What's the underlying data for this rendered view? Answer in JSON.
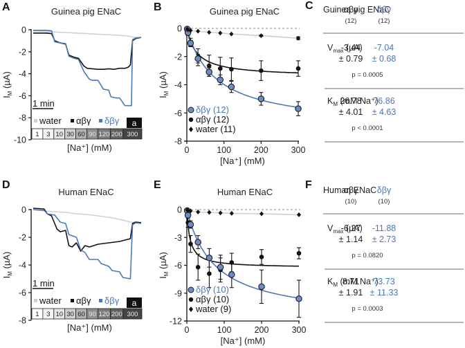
{
  "colors": {
    "water": "#d0d0d0",
    "abg": "#111111",
    "dbg": "#4a78b5",
    "dbg_fill": "#6b8cc4"
  },
  "chart_data": [
    {
      "panel": "A",
      "type": "line",
      "title": "Guinea pig ENaC",
      "xlabel": "[Na⁺] (mM)",
      "ylabel": "I_M (µA)",
      "ylim": [
        -10,
        0
      ],
      "yticks": [
        "0",
        "-2",
        "-4",
        "-6",
        "-8",
        "-10"
      ],
      "scale_bar": "1 min",
      "legend": [
        "water",
        "αβγ",
        "δβγ"
      ],
      "amiloride_label": "a",
      "concentration_steps": [
        "1",
        "3",
        "10",
        "30",
        "60",
        "90",
        "120",
        "200",
        "300"
      ],
      "series": [
        {
          "name": "water",
          "t": [
            0,
            0.1,
            0.2,
            0.3,
            0.4,
            0.5,
            0.6,
            0.7,
            0.8,
            0.9,
            0.93,
            0.97,
            1.0
          ],
          "values": [
            -0.1,
            -0.15,
            -0.2,
            -0.25,
            -0.3,
            -0.35,
            -0.4,
            -0.45,
            -0.5,
            -0.6,
            -0.7,
            -0.7,
            -0.7
          ]
        },
        {
          "name": "αβγ",
          "t": [
            0,
            0.12,
            0.17,
            0.2,
            0.25,
            0.3,
            0.33,
            0.38,
            0.42,
            0.47,
            0.5,
            0.55,
            0.6,
            0.65,
            0.7,
            0.75,
            0.8,
            0.85,
            0.88,
            0.9,
            0.92,
            0.95,
            1.0
          ],
          "values": [
            -0.3,
            -0.3,
            -0.35,
            -1.0,
            -1.2,
            -1.3,
            -2.3,
            -2.5,
            -2.6,
            -3.3,
            -3.5,
            -3.55,
            -3.6,
            -3.6,
            -3.55,
            -3.6,
            -3.5,
            -3.5,
            -3.4,
            -3.2,
            -1.0,
            -0.8,
            -0.7
          ]
        },
        {
          "name": "δβγ",
          "t": [
            0,
            0.12,
            0.17,
            0.2,
            0.25,
            0.3,
            0.33,
            0.38,
            0.42,
            0.47,
            0.52,
            0.55,
            0.6,
            0.65,
            0.7,
            0.72,
            0.77,
            0.8,
            0.85,
            0.87,
            0.89,
            0.91,
            0.92,
            0.95,
            1.0
          ],
          "values": [
            -0.05,
            -0.05,
            -0.1,
            -1.1,
            -1.2,
            -1.25,
            -2.4,
            -2.6,
            -2.7,
            -3.8,
            -4.5,
            -4.6,
            -4.6,
            -5.4,
            -5.5,
            -6.1,
            -6.2,
            -6.2,
            -6.9,
            -6.9,
            -6.9,
            -6.9,
            -0.9,
            -0.75,
            -0.7
          ]
        }
      ]
    },
    {
      "panel": "B",
      "type": "scatter",
      "title": "Guinea pig ENaC",
      "xlabel": "[Na⁺] (mM)",
      "ylabel": "I_M (µA)",
      "xlim": [
        0,
        300
      ],
      "ylim": [
        -8,
        0
      ],
      "xticks": [
        "0",
        "100",
        "200",
        "300"
      ],
      "yticks": [
        "0",
        "-2",
        "-4",
        "-6",
        "-8"
      ],
      "x": [
        1,
        3,
        10,
        30,
        60,
        90,
        120,
        200,
        300
      ],
      "series": [
        {
          "name": "δβγ (12)",
          "values": [
            -0.05,
            -0.3,
            -1.05,
            -2.15,
            -3.1,
            -3.65,
            -4.15,
            -5.0,
            -5.7
          ],
          "err": [
            0.05,
            0.1,
            0.2,
            0.3,
            0.3,
            0.35,
            0.4,
            0.45,
            0.5
          ],
          "fit": {
            "vmax": -7.04,
            "km": 76.86
          }
        },
        {
          "name": "αβγ (12)",
          "values": [
            -0.1,
            -0.35,
            -1.0,
            -2.05,
            -2.65,
            -2.85,
            -2.9,
            -3.0,
            -2.85
          ],
          "err": [
            0.05,
            0.15,
            0.3,
            0.6,
            0.75,
            0.8,
            0.8,
            0.7,
            0.55
          ],
          "fit": {
            "vmax": -3.44,
            "km": 26.78
          }
        },
        {
          "name": "water (11)",
          "values": [
            -0.05,
            -0.1,
            -0.15,
            -0.2,
            -0.28,
            -0.33,
            -0.4,
            -0.52,
            -0.7
          ],
          "err": [
            0,
            0,
            0,
            0,
            0,
            0,
            0,
            0.05,
            0.1
          ]
        }
      ],
      "zero_line": "dashed"
    },
    {
      "panel": "D",
      "type": "line",
      "title": "Human ENaC",
      "xlabel": "[Na⁺] (mM)",
      "ylabel": "I_M (µA)",
      "ylim": [
        -8,
        0
      ],
      "yticks": [
        "0",
        "-2",
        "-4",
        "-6",
        "-8"
      ],
      "scale_bar": "1 min",
      "legend": [
        "water",
        "αβγ",
        "δβγ"
      ],
      "amiloride_label": "a",
      "concentration_steps": [
        "1",
        "3",
        "10",
        "30",
        "60",
        "90",
        "120",
        "200",
        "300"
      ],
      "series": [
        {
          "name": "water",
          "t": [
            0,
            0.1,
            0.2,
            0.3,
            0.4,
            0.5,
            0.6,
            0.7,
            0.8,
            0.9,
            0.92,
            1.0
          ],
          "values": [
            0,
            -0.1,
            -0.15,
            -0.2,
            -0.3,
            -0.35,
            -0.45,
            -0.55,
            -0.7,
            -0.9,
            -0.9,
            -0.9
          ]
        },
        {
          "name": "αβγ",
          "t": [
            0,
            0.1,
            0.13,
            0.17,
            0.22,
            0.25,
            0.3,
            0.33,
            0.36,
            0.4,
            0.44,
            0.48,
            0.52,
            0.56,
            0.6,
            0.7,
            0.8,
            0.9,
            0.92,
            0.95,
            1.0
          ],
          "values": [
            0.1,
            0.05,
            -0.3,
            -0.45,
            -1.4,
            -1.6,
            -1.5,
            -2.6,
            -2.7,
            -2.4,
            -3.0,
            -2.6,
            -2.7,
            -2.6,
            -2.5,
            -2.4,
            -2.3,
            -2.1,
            -1.0,
            -0.9,
            -0.95
          ]
        },
        {
          "name": "δβγ",
          "t": [
            0,
            0.1,
            0.13,
            0.2,
            0.25,
            0.3,
            0.33,
            0.4,
            0.44,
            0.48,
            0.52,
            0.6,
            0.63,
            0.7,
            0.73,
            0.8,
            0.83,
            0.9,
            0.92,
            0.95,
            1.0
          ],
          "values": [
            0,
            -0.05,
            -0.3,
            -0.4,
            -0.9,
            -1.0,
            -1.8,
            -2.0,
            -2.9,
            -3.1,
            -3.6,
            -3.6,
            -3.9,
            -4.1,
            -4.4,
            -4.5,
            -4.9,
            -5.0,
            -1.1,
            -0.95,
            -1.0
          ]
        }
      ]
    },
    {
      "panel": "E",
      "type": "scatter",
      "title": "Human ENaC",
      "xlabel": "[Na⁺] (mM)",
      "ylabel": "I_M (µA)",
      "xlim": [
        0,
        300
      ],
      "ylim": [
        -12,
        0
      ],
      "xticks": [
        "0",
        "100",
        "200",
        "300"
      ],
      "yticks": [
        "0",
        "-3",
        "-6",
        "-9",
        "-12"
      ],
      "x": [
        1,
        3,
        10,
        30,
        60,
        90,
        120,
        200,
        300
      ],
      "series": [
        {
          "name": "δβγ (10)",
          "values": [
            -0.1,
            -0.6,
            -1.6,
            -3.5,
            -5.2,
            -6.2,
            -7.0,
            -8.3,
            -9.6
          ],
          "err": [
            0.1,
            0.2,
            0.4,
            0.7,
            1.0,
            1.3,
            1.4,
            1.8,
            2.0
          ],
          "fit": {
            "vmax": -11.88,
            "km": 73.73
          }
        },
        {
          "name": "αβγ (10)",
          "values": [
            -0.2,
            -1.4,
            -3.7,
            -6.2,
            -6.9,
            -6.5,
            -5.7,
            -5.1,
            -4.7
          ],
          "err": [
            0.1,
            0.5,
            0.9,
            1.4,
            1.5,
            1.3,
            1.0,
            0.8,
            0.6
          ],
          "fit": {
            "vmax": -6.27,
            "km": 8.71
          }
        },
        {
          "name": "water (9)",
          "values": [
            -0.05,
            -0.1,
            -0.15,
            -0.25,
            -0.3,
            -0.35,
            -0.4,
            -0.45,
            -0.55
          ],
          "err": [
            0,
            0,
            0,
            0,
            0,
            0,
            0,
            0,
            0
          ]
        }
      ],
      "zero_line": "dashed"
    }
  ],
  "tables": [
    {
      "panel": "C",
      "title": "Guinea pig ENaC",
      "columns": [
        {
          "label": "αβγ",
          "n": "(12)"
        },
        {
          "label": "δβγ",
          "n": "(12)"
        }
      ],
      "rows": [
        {
          "param": "V",
          "sub": "max",
          "unit": " (µA)",
          "values": [
            [
              "-3.44",
              "± 0.79"
            ],
            [
              "-7.04",
              "± 0.68"
            ]
          ],
          "p": "p = 0.0005"
        },
        {
          "param": "K",
          "sub": "M",
          "unit": " (mM Na⁺)",
          "values": [
            [
              "26.78",
              "± 4.01"
            ],
            [
              "76.86",
              "± 4.63"
            ]
          ],
          "p": "p < 0.0001"
        }
      ]
    },
    {
      "panel": "F",
      "title": "Human ENaC",
      "columns": [
        {
          "label": "αβγ",
          "n": "(10)"
        },
        {
          "label": "δβγ",
          "n": "(10)"
        }
      ],
      "rows": [
        {
          "param": "V",
          "sub": "max",
          "unit": " (µA)",
          "values": [
            [
              "-6.27",
              "± 1.14"
            ],
            [
              "-11.88",
              "± 2.73"
            ]
          ],
          "p": "p = 0.0820"
        },
        {
          "param": "K",
          "sub": "M",
          "unit": " (mM Na⁺)",
          "values": [
            [
              "8.71",
              "± 1.91"
            ],
            [
              "73.73",
              "± 11.33"
            ]
          ],
          "p": "p = 0.0003"
        }
      ]
    }
  ]
}
